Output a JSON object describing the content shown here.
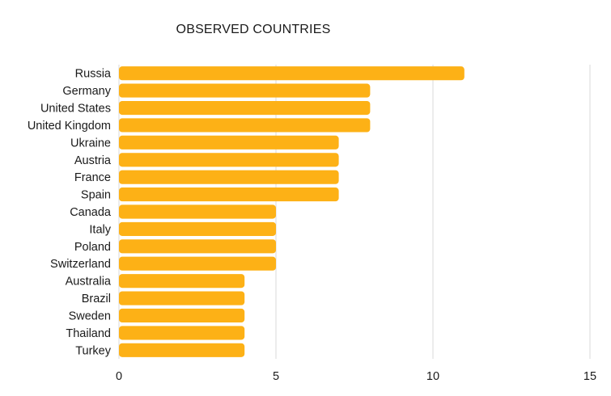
{
  "chart_data": {
    "type": "bar",
    "orientation": "horizontal",
    "title": "OBSERVED COUNTRIES",
    "xlabel": "",
    "ylabel": "",
    "categories": [
      "Russia",
      "Germany",
      "United States",
      "United Kingdom",
      "Ukraine",
      "Austria",
      "France",
      "Spain",
      "Canada",
      "Italy",
      "Poland",
      "Switzerland",
      "Australia",
      "Brazil",
      "Sweden",
      "Thailand",
      "Turkey"
    ],
    "values": [
      11,
      8,
      8,
      8,
      7,
      7,
      7,
      7,
      5,
      5,
      5,
      5,
      4,
      4,
      4,
      4,
      4
    ],
    "xlim": [
      0,
      15
    ],
    "xticks": [
      0,
      5,
      10,
      15
    ],
    "grid": true,
    "legend": "none",
    "bar_color": "#FDB116",
    "grid_color": "#d9d9d9"
  }
}
